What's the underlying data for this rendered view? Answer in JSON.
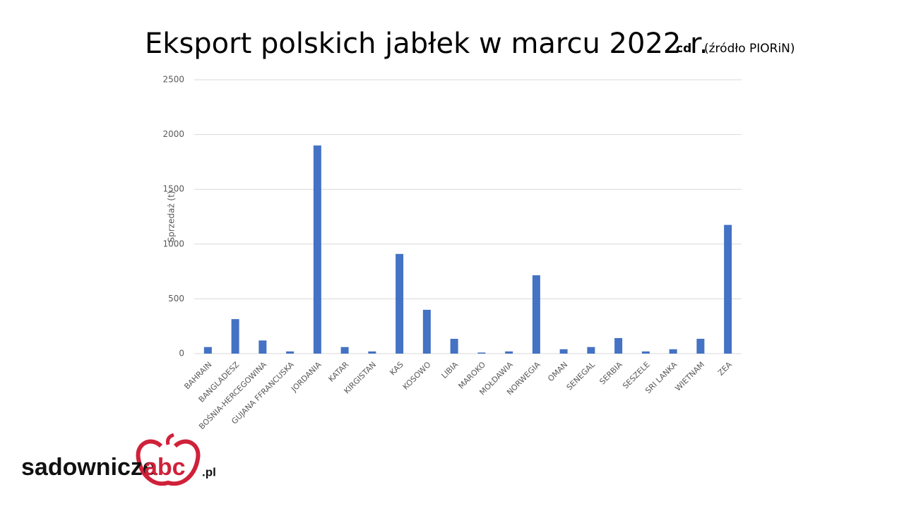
{
  "chart_data": {
    "type": "bar",
    "title": "Eksport polskich jabłek w marcu 2022 r.",
    "annotations": [
      "cd.",
      "(źródło PIORiN)"
    ],
    "y_label": "Sprzedaż (t)",
    "categories": [
      "BAHRAIN",
      "BANGLADESZ",
      "BOŚNIA-HERCEGOWINA",
      "GUJANA FFRANCUSKA",
      "JORDANIA",
      "KATAR",
      "KIRGISTAN",
      "KAS",
      "KOSOWO",
      "LIBIA",
      "MAROKO",
      "MOŁDAWIA",
      "NORWEGIA",
      "OMAN",
      "SENEGAL",
      "SERBIA",
      "SESZELE",
      "SRI LANKA",
      "WIETNAM",
      "ZEA"
    ],
    "values": [
      60,
      315,
      120,
      20,
      1900,
      60,
      20,
      910,
      400,
      135,
      10,
      20,
      715,
      40,
      60,
      142,
      20,
      40,
      135,
      1175
    ],
    "color": "#4472c4",
    "ylim": [
      0,
      2500
    ],
    "yticks": [
      0,
      500,
      1000,
      1500,
      2000,
      2500
    ],
    "grid": true
  },
  "logo": [
    "sadownicze",
    "abc",
    ".pl"
  ]
}
